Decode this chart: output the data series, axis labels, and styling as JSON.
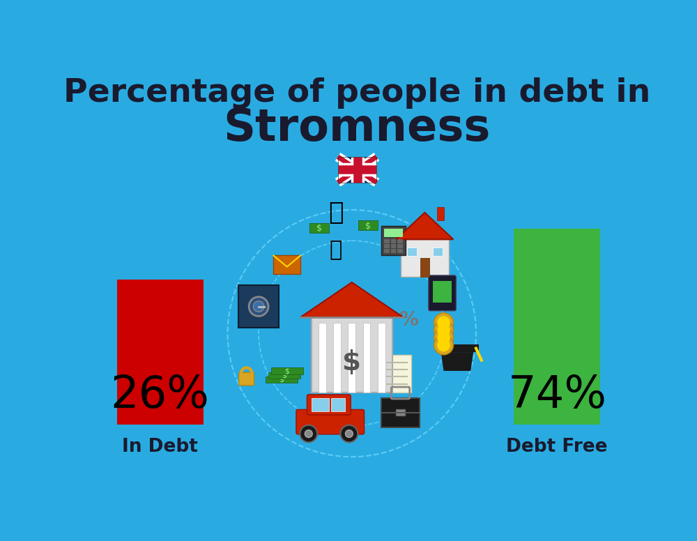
{
  "title_line1": "Percentage of people in debt in",
  "title_line2": "Stromness",
  "background_color": "#29ABE2",
  "bar1_value": 26,
  "bar1_label": "26%",
  "bar1_color": "#CC0000",
  "bar1_text": "In Debt",
  "bar2_value": 74,
  "bar2_label": "74%",
  "bar2_color": "#3DB340",
  "bar2_text": "Debt Free",
  "label_color": "#1a1a2e",
  "title_fontsize": 34,
  "subtitle_fontsize": 46,
  "bar_label_fontsize": 46,
  "bar_text_fontsize": 19
}
